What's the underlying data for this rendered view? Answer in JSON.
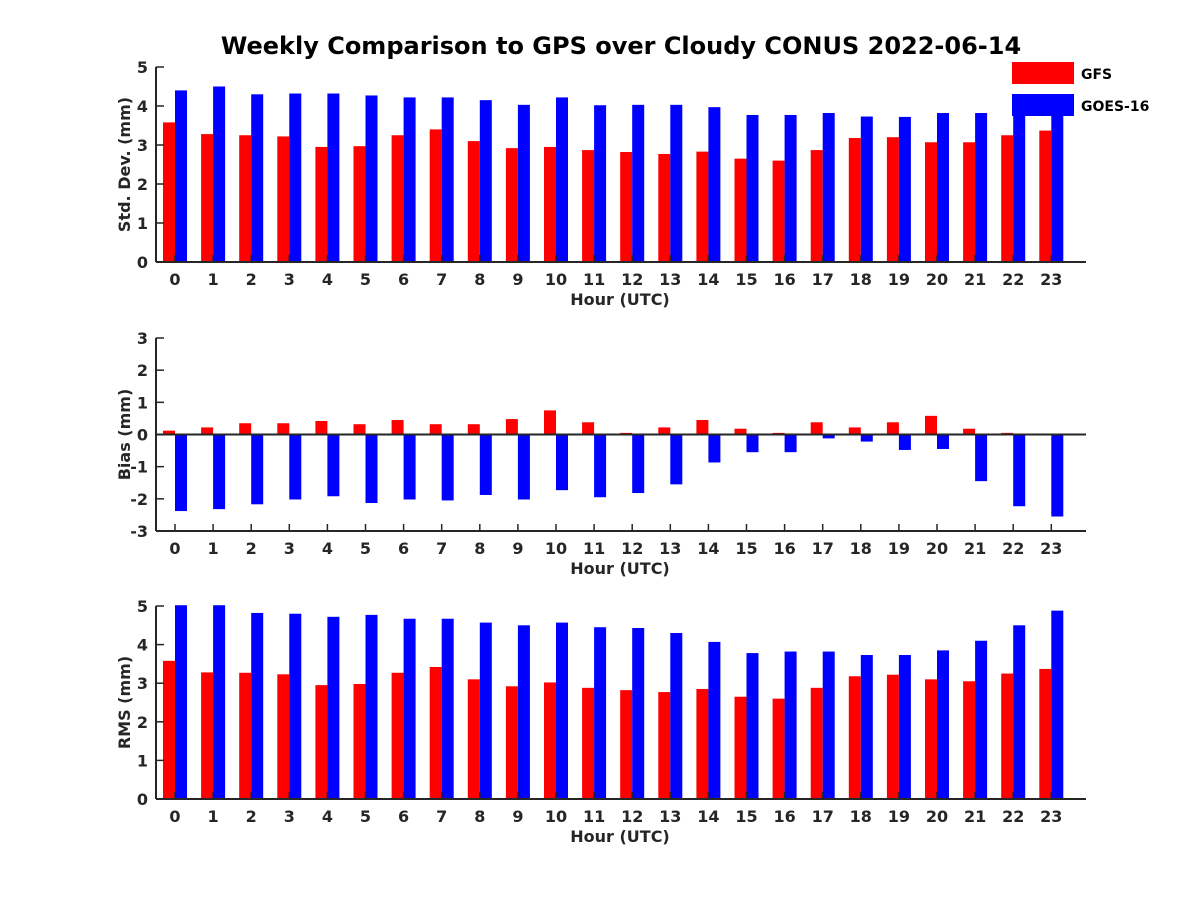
{
  "title": "Weekly Comparison to GPS over Cloudy CONUS 2022-06-14",
  "colors": {
    "GFS": "#ff0000",
    "GOES-16": "#0000ff",
    "axis": "#262626"
  },
  "legend": {
    "placement": "top-right",
    "items": [
      "GFS",
      "GOES-16"
    ]
  },
  "chart_data": [
    {
      "type": "bar",
      "xlabel": "Hour (UTC)",
      "ylabel": "Std. Dev. (mm)",
      "ylim": [
        0,
        5
      ],
      "yticks": [
        0,
        1,
        2,
        3,
        4,
        5
      ],
      "categories": [
        "0",
        "1",
        "2",
        "3",
        "4",
        "5",
        "6",
        "7",
        "8",
        "9",
        "10",
        "11",
        "12",
        "13",
        "14",
        "15",
        "16",
        "17",
        "18",
        "19",
        "20",
        "21",
        "22",
        "23"
      ],
      "series": [
        {
          "name": "GFS",
          "values": [
            3.58,
            3.28,
            3.25,
            3.22,
            2.95,
            2.97,
            3.25,
            3.4,
            3.1,
            2.92,
            2.95,
            2.87,
            2.82,
            2.77,
            2.83,
            2.65,
            2.6,
            2.87,
            3.18,
            3.2,
            3.07,
            3.07,
            3.25,
            3.37
          ]
        },
        {
          "name": "GOES-16",
          "values": [
            4.4,
            4.5,
            4.3,
            4.32,
            4.32,
            4.27,
            4.22,
            4.22,
            4.15,
            4.03,
            4.22,
            4.02,
            4.03,
            4.03,
            3.97,
            3.77,
            3.77,
            3.82,
            3.73,
            3.72,
            3.82,
            3.82,
            3.9,
            3.9
          ]
        }
      ]
    },
    {
      "type": "bar",
      "xlabel": "Hour (UTC)",
      "ylabel": "Bias (mm)",
      "ylim": [
        -3,
        3
      ],
      "yticks": [
        -3,
        -2,
        -1,
        0,
        1,
        2,
        3
      ],
      "categories": [
        "0",
        "1",
        "2",
        "3",
        "4",
        "5",
        "6",
        "7",
        "8",
        "9",
        "10",
        "11",
        "12",
        "13",
        "14",
        "15",
        "16",
        "17",
        "18",
        "19",
        "20",
        "21",
        "22",
        "23"
      ],
      "series": [
        {
          "name": "GFS",
          "values": [
            0.12,
            0.22,
            0.35,
            0.35,
            0.42,
            0.32,
            0.45,
            0.32,
            0.32,
            0.48,
            0.75,
            0.38,
            0.05,
            0.22,
            0.45,
            0.18,
            0.05,
            0.38,
            0.22,
            0.38,
            0.58,
            0.18,
            0.05,
            0.02
          ]
        },
        {
          "name": "GOES-16",
          "values": [
            -2.38,
            -2.32,
            -2.17,
            -2.02,
            -1.92,
            -2.13,
            -2.02,
            -2.05,
            -1.88,
            -2.02,
            -1.73,
            -1.95,
            -1.82,
            -1.55,
            -0.87,
            -0.55,
            -0.55,
            -0.12,
            -0.22,
            -0.48,
            -0.45,
            -1.45,
            -2.23,
            -2.55
          ]
        }
      ]
    },
    {
      "type": "bar",
      "xlabel": "Hour (UTC)",
      "ylabel": "RMS (mm)",
      "ylim": [
        0,
        5
      ],
      "yticks": [
        0,
        1,
        2,
        3,
        4,
        5
      ],
      "categories": [
        "0",
        "1",
        "2",
        "3",
        "4",
        "5",
        "6",
        "7",
        "8",
        "9",
        "10",
        "11",
        "12",
        "13",
        "14",
        "15",
        "16",
        "17",
        "18",
        "19",
        "20",
        "21",
        "22",
        "23"
      ],
      "series": [
        {
          "name": "GFS",
          "values": [
            3.58,
            3.28,
            3.27,
            3.23,
            2.95,
            2.98,
            3.27,
            3.42,
            3.1,
            2.92,
            3.02,
            2.88,
            2.82,
            2.77,
            2.85,
            2.65,
            2.6,
            2.88,
            3.18,
            3.22,
            3.1,
            3.05,
            3.25,
            3.37
          ]
        },
        {
          "name": "GOES-16",
          "values": [
            5.02,
            5.02,
            4.82,
            4.8,
            4.72,
            4.77,
            4.67,
            4.67,
            4.57,
            4.5,
            4.57,
            4.45,
            4.43,
            4.3,
            4.07,
            3.78,
            3.82,
            3.82,
            3.73,
            3.73,
            3.85,
            4.1,
            4.5,
            4.88
          ]
        }
      ]
    }
  ]
}
